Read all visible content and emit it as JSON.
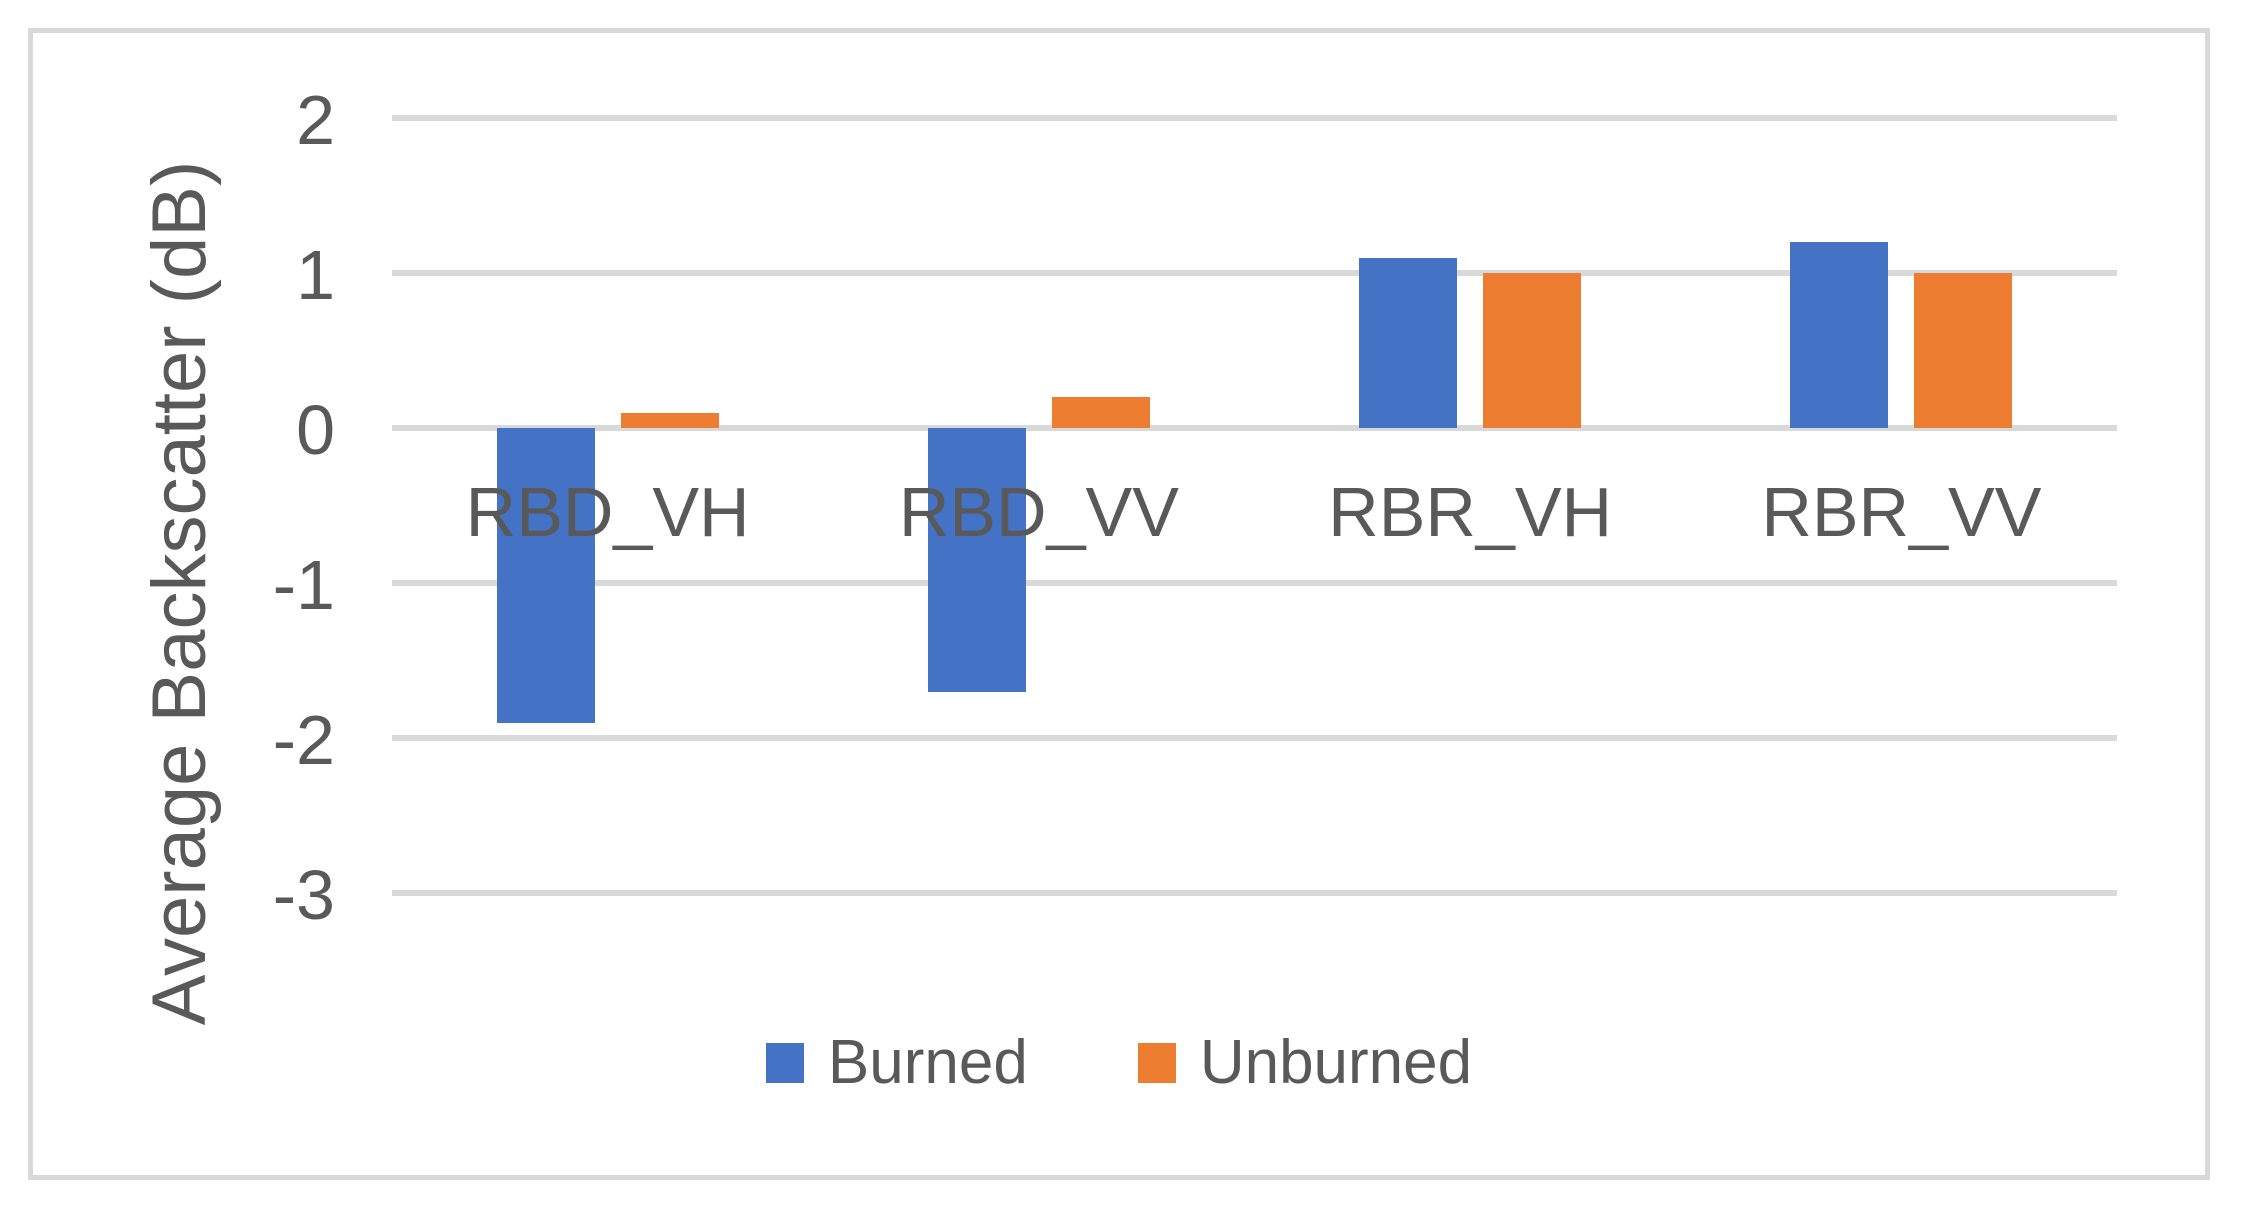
{
  "figure": {
    "background_color": "#ffffff",
    "frame_border_color": "#D9D9D9"
  },
  "chart_data": {
    "type": "bar",
    "title": "",
    "ylabel": "Average Backscatter (dB)",
    "xlabel": "",
    "categories": [
      "RBD_VH",
      "RBD_VV",
      "RBR_VH",
      "RBR_VV"
    ],
    "series": [
      {
        "name": "Burned",
        "color": "#4472C4",
        "values": [
          -1.9,
          -1.7,
          1.1,
          1.2
        ]
      },
      {
        "name": "Unburned",
        "color": "#ED7D31",
        "values": [
          0.1,
          0.2,
          1.0,
          1.0
        ]
      }
    ],
    "yticks": [
      2,
      1,
      0,
      -1,
      -2,
      -3
    ],
    "ylim": [
      -3.7,
      2.3
    ],
    "grid": true,
    "gridline_color": "#D9D9D9",
    "text_color": "#595959",
    "legend_position": "bottom"
  }
}
